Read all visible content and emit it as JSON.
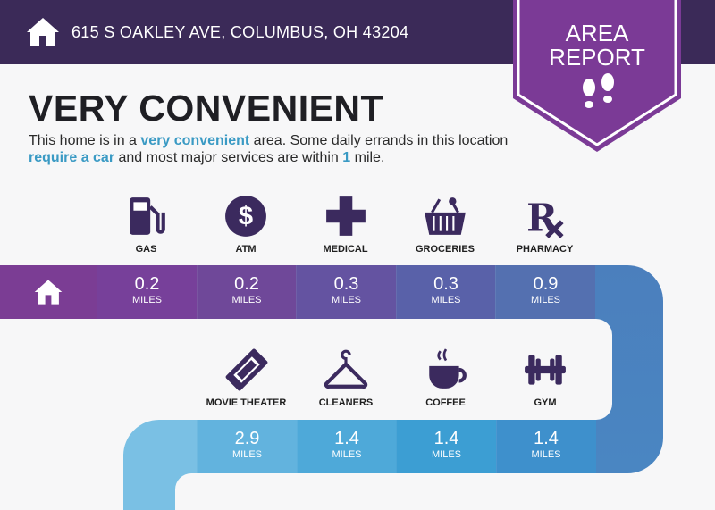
{
  "header": {
    "address": "615 S OAKLEY AVE, COLUMBUS, OH 43204",
    "icon": "home-icon"
  },
  "badge": {
    "line1": "AREA",
    "line2": "REPORT",
    "icon": "footprints-icon"
  },
  "title": "VERY CONVENIENT",
  "description": {
    "p1": "This home is in a ",
    "h1": "very convenient",
    "p2": " area. Some daily errands in this location ",
    "h2": "require a car",
    "p3": " and most major services are within ",
    "h3": "1",
    "p4": " mile."
  },
  "colors": {
    "header": "#3b2a58",
    "badge": "#7b3a96",
    "highlight": "#3a9ac4",
    "icons": "#3b2a5e"
  },
  "row1": [
    {
      "label": "GAS",
      "icon": "gas-pump-icon",
      "value": "0.2",
      "unit": "MILES"
    },
    {
      "label": "ATM",
      "icon": "dollar-icon",
      "value": "0.2",
      "unit": "MILES"
    },
    {
      "label": "MEDICAL",
      "icon": "medical-cross-icon",
      "value": "0.3",
      "unit": "MILES"
    },
    {
      "label": "GROCERIES",
      "icon": "grocery-basket-icon",
      "value": "0.3",
      "unit": "MILES"
    },
    {
      "label": "PHARMACY",
      "icon": "rx-icon",
      "value": "0.9",
      "unit": "MILES"
    }
  ],
  "row2": [
    {
      "label": "MOVIE THEATER",
      "icon": "ticket-icon",
      "value": "2.9",
      "unit": "MILES"
    },
    {
      "label": "CLEANERS",
      "icon": "hanger-icon",
      "value": "1.4",
      "unit": "MILES"
    },
    {
      "label": "COFFEE",
      "icon": "coffee-cup-icon",
      "value": "1.4",
      "unit": "MILES"
    },
    {
      "label": "GYM",
      "icon": "dumbbell-icon",
      "value": "1.4",
      "unit": "MILES"
    }
  ]
}
